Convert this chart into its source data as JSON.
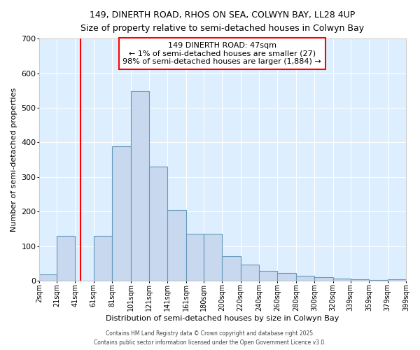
{
  "title1": "149, DINERTH ROAD, RHOS ON SEA, COLWYN BAY, LL28 4UP",
  "title2": "Size of property relative to semi-detached houses in Colwyn Bay",
  "xlabel": "Distribution of semi-detached houses by size in Colwyn Bay",
  "ylabel": "Number of semi-detached properties",
  "bar_left_edges": [
    2,
    21,
    41,
    61,
    81,
    101,
    121,
    141,
    161,
    180,
    200,
    220,
    240,
    260,
    280,
    300,
    320,
    339,
    359,
    379
  ],
  "bar_widths": [
    19,
    20,
    20,
    20,
    20,
    20,
    20,
    20,
    19,
    20,
    20,
    20,
    20,
    20,
    20,
    20,
    19,
    20,
    20,
    20
  ],
  "bar_heights": [
    18,
    130,
    0,
    130,
    388,
    548,
    330,
    204,
    135,
    135,
    70,
    47,
    29,
    22,
    14,
    9,
    5,
    4,
    2,
    4
  ],
  "bar_color": "#c8d8ee",
  "bar_edge_color": "#6699bb",
  "xlim": [
    2,
    399
  ],
  "ylim": [
    0,
    700
  ],
  "yticks": [
    0,
    100,
    200,
    300,
    400,
    500,
    600,
    700
  ],
  "xtick_labels": [
    "2sqm",
    "21sqm",
    "41sqm",
    "61sqm",
    "81sqm",
    "101sqm",
    "121sqm",
    "141sqm",
    "161sqm",
    "180sqm",
    "200sqm",
    "220sqm",
    "240sqm",
    "260sqm",
    "280sqm",
    "300sqm",
    "320sqm",
    "339sqm",
    "359sqm",
    "379sqm",
    "399sqm"
  ],
  "xtick_positions": [
    2,
    21,
    41,
    61,
    81,
    101,
    121,
    141,
    161,
    180,
    200,
    220,
    240,
    260,
    280,
    300,
    320,
    339,
    359,
    379,
    399
  ],
  "red_line_x": 47,
  "annotation_title": "149 DINERTH ROAD: 47sqm",
  "annotation_line1": "← 1% of semi-detached houses are smaller (27)",
  "annotation_line2": "98% of semi-detached houses are larger (1,884) →",
  "axes_bg_color": "#ddeeff",
  "fig_bg_color": "#ffffff",
  "grid_color": "#ffffff",
  "footer1": "Contains HM Land Registry data © Crown copyright and database right 2025.",
  "footer2": "Contains public sector information licensed under the Open Government Licence v3.0."
}
